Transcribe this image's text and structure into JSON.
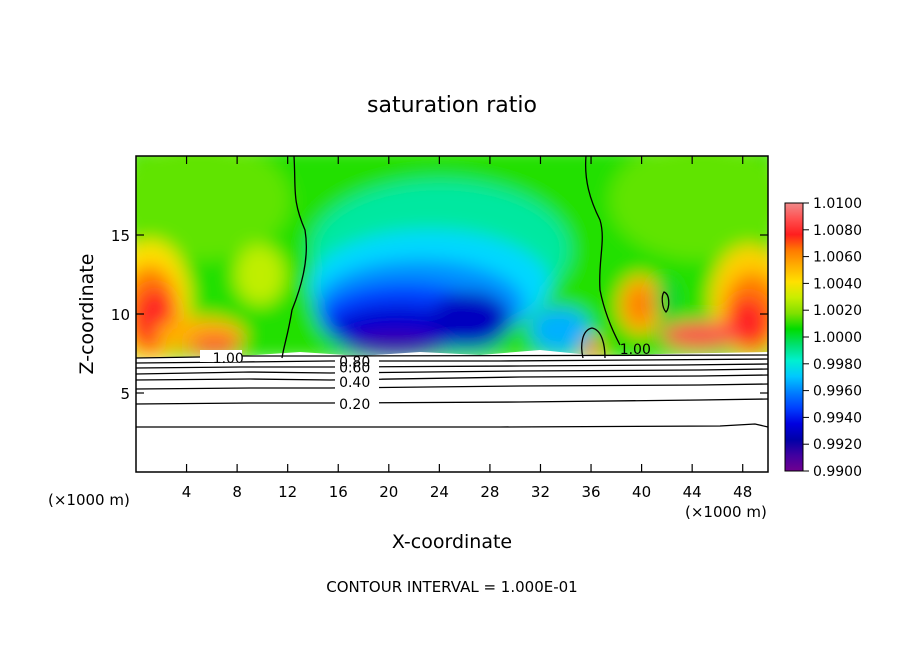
{
  "chart_data": {
    "type": "heatmap",
    "title": "saturation ratio",
    "xlabel": "X-coordinate",
    "ylabel": "Z-coordinate",
    "x_unit": "(×1000 m)",
    "xlim": [
      0,
      50
    ],
    "ylim": [
      0,
      20
    ],
    "xticks": [
      4,
      8,
      12,
      16,
      20,
      24,
      28,
      32,
      36,
      40,
      44,
      48
    ],
    "yticks": [
      5,
      10,
      15
    ],
    "footer": "CONTOUR INTERVAL = 1.000E-01",
    "colorbar": {
      "min": 0.99,
      "max": 1.01,
      "labels": [
        "1.0100",
        "1.0080",
        "1.0060",
        "1.0040",
        "1.0020",
        "1.0000",
        "0.9980",
        "0.9960",
        "0.9940",
        "0.9920",
        "0.9900"
      ],
      "colors": [
        "#f08a8a",
        "#ff5050",
        "#ff1e1e",
        "#ff7a00",
        "#ffb000",
        "#ffe000",
        "#c8ee00",
        "#80e000",
        "#00dc00",
        "#00e070",
        "#00f0d0",
        "#00c8ff",
        "#0080ff",
        "#0040ff",
        "#0000e0",
        "#0000a8",
        "#4000a0",
        "#700090"
      ]
    },
    "contour_labels": [
      {
        "text": "1.00",
        "x": 7.3,
        "z": 7.2
      },
      {
        "text": "1.00",
        "x": 39.5,
        "z": 7.8
      },
      {
        "text": "0.80",
        "x": 17.3,
        "z": 7.0
      },
      {
        "text": "0.60",
        "x": 17.3,
        "z": 6.6
      },
      {
        "text": "0.40",
        "x": 17.3,
        "z": 5.7
      },
      {
        "text": "0.20",
        "x": 17.3,
        "z": 4.3
      }
    ]
  }
}
